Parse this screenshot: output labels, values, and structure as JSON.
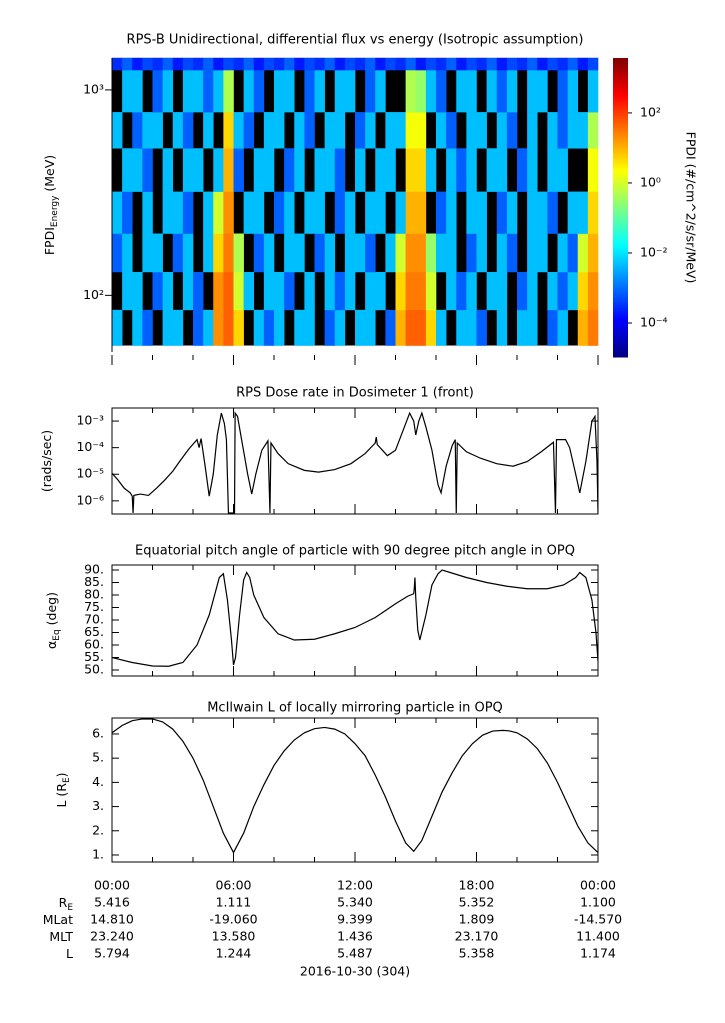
{
  "chart_data": [
    {
      "type": "spectrogram",
      "title": "RPS-B  Unidirectional, differential flux vs energy (Isotropic assumption)",
      "ylabel": {
        "main": "FPDI",
        "sub": "Energy",
        "unit": " (MeV)"
      },
      "xlim": [
        0,
        24
      ],
      "xticks": [
        0,
        6,
        12,
        18,
        24
      ],
      "xminor": [
        2,
        4,
        8,
        10,
        14,
        16,
        20,
        22
      ],
      "ylim": [
        53,
        1430
      ],
      "ylog": true,
      "yticks": [
        {
          "value": 100,
          "label": "10²"
        },
        {
          "value": 1000,
          "label": "10³"
        }
      ],
      "nodata_color": "#000000",
      "time_bins": [
        0,
        0.5,
        1,
        1.5,
        2,
        2.5,
        3,
        3.5,
        4,
        4.5,
        5,
        5.5,
        6,
        6.5,
        7,
        7.5,
        8,
        8.5,
        9,
        9.5,
        10,
        10.5,
        11,
        11.5,
        12,
        12.5,
        13,
        13.5,
        14,
        14.5,
        15,
        15.5,
        16,
        16.5,
        17,
        17.5,
        18,
        18.5,
        19,
        19.5,
        20,
        20.5,
        21,
        21.5,
        22,
        22.5,
        23,
        23.5,
        24
      ],
      "energy_bins": [
        57,
        85,
        130,
        200,
        320,
        520,
        780,
        1250,
        1432
      ],
      "z": [
        [
          0.005,
          null,
          0.005,
          0.0008,
          null,
          0.005,
          0.005,
          null,
          0.0008,
          0.005,
          20,
          50,
          5,
          null,
          0.005,
          0.0008,
          0.005,
          null,
          0.005,
          0.005,
          null,
          0.0008,
          0.005,
          null,
          0.005,
          0.005,
          null,
          0.0008,
          10,
          50,
          50,
          5,
          0.005,
          null,
          0.005,
          0.005,
          0.0008,
          null,
          0.005,
          null,
          0.005,
          0.005,
          null,
          0.0008,
          0.005,
          null,
          10,
          30
        ],
        [
          null,
          0.005,
          0.005,
          null,
          0.0008,
          0.005,
          null,
          0.005,
          0.0008,
          null,
          20,
          50,
          1,
          0.005,
          null,
          0.005,
          0.005,
          0.0008,
          null,
          0.005,
          null,
          0.005,
          0.0008,
          0.005,
          null,
          0.005,
          0.005,
          null,
          5,
          30,
          30,
          1,
          null,
          0.005,
          0.0008,
          0.005,
          null,
          0.005,
          0.005,
          null,
          0.0008,
          0.005,
          null,
          0.005,
          0.0008,
          0.005,
          5,
          20
        ],
        [
          0.0008,
          0.005,
          null,
          0.005,
          0.005,
          null,
          0.0008,
          0.005,
          null,
          0.005,
          5,
          30,
          0.5,
          null,
          0.0008,
          0.005,
          null,
          0.005,
          0.005,
          null,
          0.0008,
          0.005,
          null,
          0.005,
          0.005,
          0.0008,
          null,
          0.005,
          1,
          20,
          20,
          0.3,
          0.005,
          0.005,
          null,
          0.0008,
          0.005,
          null,
          0.005,
          0.0008,
          null,
          0.005,
          0.005,
          null,
          0.005,
          0.0008,
          1,
          10
        ],
        [
          0.005,
          0.0008,
          null,
          0.005,
          null,
          0.005,
          0.005,
          0.0008,
          null,
          0.005,
          1,
          20,
          null,
          0.005,
          0.005,
          null,
          0.0008,
          0.005,
          null,
          0.005,
          0.005,
          null,
          0.0008,
          0.005,
          null,
          0.005,
          0.005,
          null,
          0.005,
          10,
          10,
          null,
          0.0008,
          0.005,
          null,
          0.005,
          0.005,
          null,
          0.0008,
          0.005,
          null,
          0.005,
          0.005,
          0.0008,
          null,
          0.005,
          0.005,
          5
        ],
        [
          null,
          0.005,
          0.005,
          0.0008,
          null,
          0.005,
          null,
          0.005,
          0.005,
          null,
          0.005,
          10,
          0.0008,
          null,
          0.005,
          0.005,
          null,
          0.0008,
          0.005,
          null,
          0.005,
          0.005,
          0.0008,
          null,
          0.005,
          null,
          0.005,
          0.005,
          null,
          5,
          5,
          0.005,
          null,
          0.005,
          0.0008,
          0.005,
          null,
          0.005,
          0.005,
          null,
          0.0008,
          0.005,
          null,
          0.005,
          0.005,
          null,
          null,
          2
        ],
        [
          0.005,
          null,
          0.0008,
          0.005,
          0.005,
          null,
          0.005,
          0.0008,
          null,
          0.005,
          null,
          5,
          0.005,
          0.0008,
          null,
          0.005,
          0.005,
          null,
          0.005,
          0.0008,
          null,
          0.005,
          0.005,
          null,
          0.0008,
          0.005,
          null,
          0.005,
          0.005,
          2,
          2,
          null,
          0.005,
          0.0008,
          null,
          0.005,
          0.005,
          null,
          0.005,
          0.0008,
          null,
          0.005,
          null,
          0.005,
          0.0008,
          0.005,
          0.005,
          0.5
        ],
        [
          null,
          0.005,
          0.005,
          null,
          0.0008,
          0.005,
          null,
          0.005,
          0.005,
          0.0008,
          0.005,
          0.5,
          null,
          0.005,
          0.0008,
          null,
          0.005,
          0.005,
          null,
          0.0008,
          0.005,
          null,
          0.005,
          0.005,
          null,
          0.0008,
          0.005,
          null,
          null,
          0.5,
          0.3,
          0.005,
          0.0008,
          null,
          0.005,
          0.005,
          null,
          0.005,
          0.0008,
          0.005,
          null,
          0.005,
          0.005,
          null,
          0.0008,
          0.005,
          null,
          0.005
        ],
        [
          0.0003,
          0.0008,
          0.0002,
          0.0005,
          0.0003,
          0.0008,
          0.0002,
          0.0005,
          0.0003,
          0.0008,
          0.0002,
          0.0005,
          0.0003,
          0.0008,
          0.0002,
          0.0005,
          0.0003,
          0.0008,
          0.0002,
          0.0005,
          0.0003,
          0.0008,
          0.0002,
          0.0005,
          0.0003,
          0.0008,
          0.0002,
          0.0005,
          0.0003,
          0.0008,
          0.0002,
          0.0005,
          0.0003,
          0.0008,
          0.0002,
          0.0005,
          0.0003,
          0.0008,
          0.0002,
          0.0005,
          0.0003,
          0.0008,
          0.0002,
          0.0005,
          0.0003,
          0.0008,
          0.0002,
          0.0005
        ]
      ],
      "colorbar": {
        "label": "FPDI (#/cm^2/s/sr/MeV)",
        "colormap": "jet",
        "clim": [
          1.07e-05,
          3700
        ],
        "ticks": [
          {
            "value": 0.0001,
            "label": "10⁻⁴"
          },
          {
            "value": 0.01,
            "label": "10⁻²"
          },
          {
            "value": 1,
            "label": "10⁰"
          },
          {
            "value": 100,
            "label": "10²"
          }
        ]
      }
    },
    {
      "type": "line",
      "title": "RPS  Dose rate in Dosimeter 1 (front)",
      "ylabel": {
        "main": "(rads/sec)"
      },
      "xlim": [
        0,
        24
      ],
      "xticks": [
        0,
        6,
        12,
        18,
        24
      ],
      "xminor": [
        2,
        4,
        8,
        10,
        14,
        16,
        20,
        22
      ],
      "ylim": [
        3.2e-07,
        0.0031
      ],
      "ylog": true,
      "yticks": [
        {
          "value": 1e-06,
          "label": "10⁻⁶"
        },
        {
          "value": 1e-05,
          "label": "10⁻⁵"
        },
        {
          "value": 0.0001,
          "label": "10⁻⁴"
        },
        {
          "value": 0.001,
          "label": "10⁻³"
        }
      ],
      "series": [
        {
          "color": "#000000",
          "x": [
            0,
            0.3,
            0.6,
            0.9,
            1.0,
            1.04,
            1.08,
            1.4,
            1.8,
            2.2,
            2.6,
            3.0,
            3.4,
            3.8,
            4.2,
            4.3,
            4.4,
            4.6,
            4.8,
            5.0,
            5.2,
            5.4,
            5.55,
            5.65,
            5.75,
            6.05,
            6.08,
            6.2,
            6.4,
            6.7,
            6.9,
            7.1,
            7.4,
            7.7,
            7.8,
            7.85,
            8.2,
            8.7,
            9.5,
            10.2,
            11.0,
            11.8,
            12.5,
            13.0,
            13.05,
            13.1,
            13.6,
            14.0,
            14.4,
            14.7,
            14.9,
            15.0,
            15.15,
            15.3,
            15.5,
            15.8,
            16.1,
            16.25,
            16.5,
            16.8,
            16.95,
            17.0,
            17.05,
            17.5,
            18.2,
            19.0,
            19.8,
            20.5,
            21.2,
            21.8,
            21.9,
            21.95,
            22.4,
            22.6,
            22.9,
            23.1,
            23.4,
            23.7,
            23.85,
            23.95,
            24.0
          ],
          "values": [
            1.1e-05,
            6e-06,
            3e-06,
            2e-06,
            1.5e-06,
            3.5e-07,
            1.6e-06,
            1.8e-06,
            1.6e-06,
            3e-06,
            6e-06,
            1.3e-05,
            3.5e-05,
            9e-05,
            0.0002,
            0.0001,
            0.00022,
            2e-05,
            1.5e-06,
            1e-05,
            0.0003,
            0.002,
            0.0008,
            0.0002,
            3.5e-07,
            3.5e-07,
            0.002,
            0.0015,
            0.0002,
            1e-05,
            1.8e-06,
            1e-05,
            8e-05,
            0.00018,
            3.5e-07,
            0.00015,
            6e-05,
            2.5e-05,
            1.4e-05,
            1.2e-05,
            1.5e-05,
            2.5e-05,
            6e-05,
            0.00015,
            0.00025,
            0.00013,
            5e-05,
            8e-05,
            0.0005,
            0.002,
            0.001,
            0.0003,
            0.001,
            0.002,
            0.0006,
            8e-05,
            4e-06,
            2e-06,
            2e-05,
            0.00012,
            0.0002,
            3.5e-07,
            0.00015,
            7e-05,
            4e-05,
            2.5e-05,
            2e-05,
            3e-05,
            7e-05,
            0.00016,
            3.5e-07,
            0.0002,
            0.0002,
            0.0001,
            1e-05,
            2e-06,
            3e-05,
            0.001,
            0.0015,
            3e-05,
            3.5e-07
          ]
        }
      ]
    },
    {
      "type": "line",
      "title": "Equatorial pitch angle of particle with 90 degree pitch angle in OPQ",
      "ylabel": {
        "main": "α",
        "sub": "Eq",
        "unit": " (deg)"
      },
      "xlim": [
        0,
        24
      ],
      "xticks": [
        0,
        6,
        12,
        18,
        24
      ],
      "xminor": [
        2,
        4,
        8,
        10,
        14,
        16,
        20,
        22
      ],
      "ylim": [
        47.6,
        92
      ],
      "yticks": [
        {
          "value": 50,
          "label": "50."
        },
        {
          "value": 55,
          "label": "55."
        },
        {
          "value": 60,
          "label": "60."
        },
        {
          "value": 65,
          "label": "65."
        },
        {
          "value": 70,
          "label": "70."
        },
        {
          "value": 75,
          "label": "75."
        },
        {
          "value": 80,
          "label": "80."
        },
        {
          "value": 85,
          "label": "85."
        },
        {
          "value": 90,
          "label": "90."
        }
      ],
      "series": [
        {
          "color": "#000000",
          "x": [
            0,
            1,
            2,
            2.8,
            3.5,
            4.2,
            4.8,
            5.3,
            5.5,
            5.7,
            5.9,
            6.0,
            6.1,
            6.3,
            6.5,
            6.65,
            6.8,
            7.0,
            7.5,
            8.2,
            9,
            10,
            11,
            12,
            13,
            14,
            14.6,
            14.9,
            14.93,
            14.96,
            15.0,
            15.1,
            15.2,
            15.5,
            15.8,
            16.1,
            16.3,
            16.7,
            17.5,
            18.5,
            19.5,
            20.5,
            21.5,
            22.3,
            22.9,
            23.1,
            23.4,
            23.7,
            23.9,
            24
          ],
          "values": [
            55,
            53,
            51.6,
            51.5,
            53,
            60,
            72,
            87,
            88.5,
            78,
            62,
            52,
            55,
            72,
            86,
            89,
            87,
            80,
            71,
            64.5,
            62,
            62.3,
            64.5,
            67,
            71,
            76.5,
            79.5,
            80.5,
            83,
            87,
            79,
            66,
            62,
            72,
            84,
            88.5,
            90,
            89,
            87,
            85,
            83.5,
            82.5,
            82.5,
            84,
            87,
            89,
            87,
            78,
            65,
            53.5
          ]
        }
      ]
    },
    {
      "type": "line",
      "title": "McIlwain L of locally mirroring particle in OPQ",
      "ylabel": {
        "main": "L (R",
        "sub": "E",
        "unit": ")"
      },
      "xlim": [
        0,
        24
      ],
      "xticks": [
        {
          "value": 0,
          "label": "00:00"
        },
        {
          "value": 6,
          "label": "06:00"
        },
        {
          "value": 12,
          "label": "12:00"
        },
        {
          "value": 18,
          "label": "18:00"
        },
        {
          "value": 24,
          "label": "00:00"
        }
      ],
      "xminor": [
        2,
        4,
        8,
        10,
        14,
        16,
        20,
        22
      ],
      "xlabel": "2016-10-30 (304)",
      "ylim": [
        0.71,
        6.66
      ],
      "yticks": [
        {
          "value": 1,
          "label": "1."
        },
        {
          "value": 2,
          "label": "2."
        },
        {
          "value": 3,
          "label": "3."
        },
        {
          "value": 4,
          "label": "4."
        },
        {
          "value": 5,
          "label": "5."
        },
        {
          "value": 6,
          "label": "6."
        }
      ],
      "series": [
        {
          "color": "#000000",
          "x": [
            0,
            0.5,
            1,
            1.5,
            2,
            2.5,
            3,
            3.5,
            4,
            4.5,
            5,
            5.5,
            6,
            6.5,
            7,
            7.5,
            8,
            8.5,
            9,
            9.5,
            10,
            10.5,
            11,
            11.5,
            12,
            12.5,
            13,
            13.5,
            14,
            14.5,
            14.9,
            15.3,
            15.8,
            16.3,
            16.8,
            17.3,
            17.8,
            18.3,
            18.8,
            19.3,
            19.6,
            20,
            20.5,
            21,
            21.5,
            22,
            22.5,
            23,
            23.5,
            24
          ],
          "values": [
            6.05,
            6.35,
            6.55,
            6.62,
            6.62,
            6.5,
            6.2,
            5.7,
            5.0,
            4.1,
            3.0,
            1.9,
            1.1,
            1.9,
            3.0,
            3.9,
            4.7,
            5.3,
            5.75,
            6.05,
            6.22,
            6.27,
            6.2,
            6.0,
            5.6,
            5.1,
            4.3,
            3.4,
            2.4,
            1.5,
            1.15,
            1.6,
            2.6,
            3.6,
            4.4,
            5.1,
            5.6,
            5.95,
            6.12,
            6.15,
            6.13,
            6.05,
            5.8,
            5.4,
            4.8,
            4.0,
            3.1,
            2.2,
            1.5,
            1.1
          ]
        }
      ],
      "ephemeris": [
        {
          "label": "R",
          "label_sub": "E",
          "values": [
            "5.416",
            "1.111",
            "5.340",
            "5.352",
            "1.100"
          ]
        },
        {
          "label": "MLat",
          "values": [
            "14.810",
            "-19.060",
            "9.399",
            "1.809",
            "-14.570"
          ]
        },
        {
          "label": "MLT",
          "values": [
            "23.240",
            "13.580",
            "1.436",
            "23.170",
            "11.400"
          ]
        },
        {
          "label": "L",
          "values": [
            "5.794",
            "1.244",
            "5.487",
            "5.358",
            "1.174"
          ]
        }
      ]
    }
  ]
}
